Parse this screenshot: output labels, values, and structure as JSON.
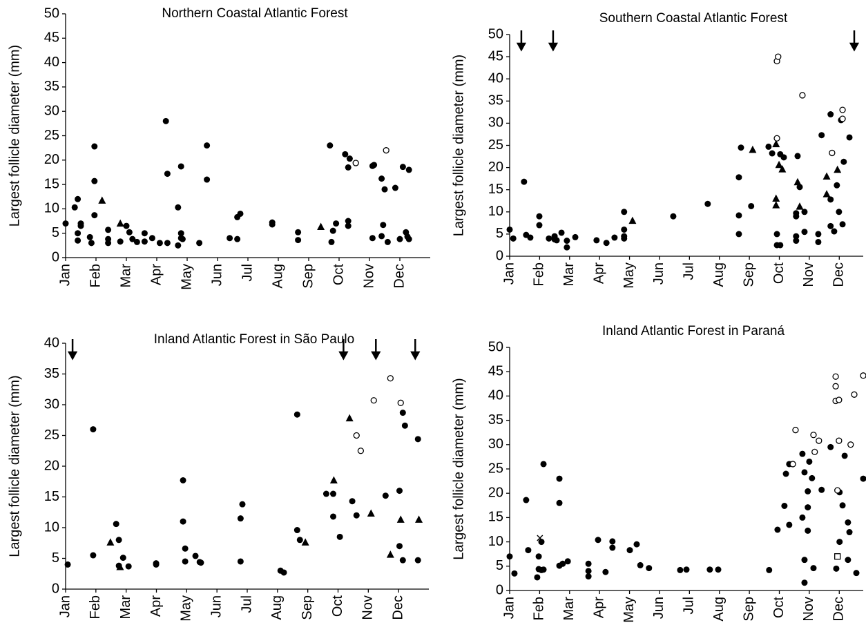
{
  "chart_data": [
    {
      "type": "scatter",
      "title": "Northern Coastal Atlantic Forest",
      "y_label": "Largest follicle diameter (mm)",
      "xlim": [
        0,
        12
      ],
      "ylim": [
        0,
        50
      ],
      "yticks": [
        0,
        5,
        10,
        15,
        20,
        25,
        30,
        35,
        40,
        45,
        50
      ],
      "xticks": [
        {
          "value": 0,
          "label": "Jan"
        },
        {
          "value": 1,
          "label": "Feb"
        },
        {
          "value": 2,
          "label": "Mar"
        },
        {
          "value": 3,
          "label": "Apr"
        },
        {
          "value": 4,
          "label": "May"
        },
        {
          "value": 5,
          "label": "Jun"
        },
        {
          "value": 6,
          "label": "Jul"
        },
        {
          "value": 7,
          "label": "Aug"
        },
        {
          "value": 8,
          "label": "Sep"
        },
        {
          "value": 9,
          "label": "Oct"
        },
        {
          "value": 10,
          "label": "Nov"
        },
        {
          "value": 11,
          "label": "Dec"
        }
      ],
      "arrows": [],
      "series": [
        {
          "marker": "filled-circle",
          "color": "#000000",
          "x": [
            0,
            0.3,
            0.4,
            0.4,
            0.4,
            0.5,
            0.5,
            0.8,
            0.85,
            0.95,
            0.95,
            0.95,
            1.4,
            1.4,
            1.4,
            1.8,
            2.0,
            2.1,
            2.2,
            2.35,
            2.6,
            2.6,
            2.85,
            3.1,
            3.3,
            3.35,
            3.35,
            3.8,
            3.8,
            3.7,
            3.7,
            3.85,
            3.8,
            4.4,
            4.65,
            4.65,
            5.4,
            5.65,
            5.65,
            5.75,
            6.8,
            6.8,
            7.65,
            7.65,
            8.7,
            8.75,
            8.8,
            8.9,
            9.2,
            9.3,
            9.3,
            9.35,
            9.3,
            10.1,
            10.1,
            10.15,
            10.4,
            10.4,
            10.45,
            10.5,
            10.6,
            10.85,
            11.0,
            11.1,
            11.2,
            11.25,
            11.3,
            11.3
          ],
          "values": [
            7,
            10.3,
            12,
            5,
            3.5,
            7,
            6.5,
            4.2,
            3,
            22.8,
            15.7,
            8.7,
            5.7,
            3.8,
            3,
            3.3,
            6.5,
            5.2,
            3.8,
            3.2,
            3.3,
            5,
            4,
            3,
            28,
            17.2,
            3,
            4,
            5,
            10.3,
            2.5,
            3.8,
            18.7,
            3,
            23,
            16,
            4,
            3.8,
            8.3,
            9,
            7.2,
            6.8,
            5.2,
            3.6,
            23,
            3.2,
            5.5,
            7,
            21.2,
            6.5,
            7.5,
            20.3,
            18.5,
            4,
            18.8,
            19,
            16.2,
            4.4,
            6.7,
            14,
            3.2,
            14.3,
            3.8,
            18.6,
            5.2,
            4.3,
            3.8,
            18
          ]
        },
        {
          "marker": "triangle",
          "color": "#000000",
          "x": [
            1.2,
            1.8,
            8.4
          ],
          "values": [
            11.7,
            7,
            6.3
          ]
        },
        {
          "marker": "open-circle",
          "color": "#000000",
          "x": [
            9.55,
            10.55
          ],
          "values": [
            19.4,
            22
          ]
        }
      ]
    },
    {
      "type": "scatter",
      "title": "Southern Coastal Atlantic Forest",
      "y_label": "Largest follicle diameter (mm)",
      "xlim": [
        0,
        11.8
      ],
      "ylim": [
        0,
        50
      ],
      "yticks": [
        0,
        5,
        10,
        15,
        20,
        25,
        30,
        35,
        40,
        45,
        50
      ],
      "xticks": [
        {
          "value": 0,
          "label": "Jan"
        },
        {
          "value": 1,
          "label": "Feb"
        },
        {
          "value": 2,
          "label": "Mar"
        },
        {
          "value": 3,
          "label": "Apr"
        },
        {
          "value": 4,
          "label": "May"
        },
        {
          "value": 5,
          "label": "Jun"
        },
        {
          "value": 6,
          "label": "Jul"
        },
        {
          "value": 7,
          "label": "Aug"
        },
        {
          "value": 8,
          "label": "Sep"
        },
        {
          "value": 9,
          "label": "Oct"
        },
        {
          "value": 10,
          "label": "Nov"
        },
        {
          "value": 11,
          "label": "Dec"
        }
      ],
      "arrows": [
        0.39,
        1.45,
        11.5
      ],
      "series": [
        {
          "marker": "filled-circle",
          "color": "#000000",
          "x": [
            0,
            0.12,
            0.48,
            0.55,
            0.69,
            0.99,
            0.99,
            1.31,
            1.5,
            1.5,
            1.57,
            1.73,
            1.91,
            1.91,
            2.19,
            2.9,
            3.23,
            3.5,
            3.82,
            3.82,
            3.82,
            3.82,
            5.46,
            6.61,
            7.65,
            7.65,
            7.65,
            7.72,
            8.06,
            8.64,
            8.76,
            8.92,
            8.92,
            9.03,
            9.03,
            9.15,
            9.61,
            9.56,
            9.56,
            9.56,
            9.56,
            9.68,
            9.84,
            9.84,
            10.3,
            10.3,
            10.41,
            10.71,
            10.71,
            10.71,
            10.83,
            10.92,
            10.99,
            11.06,
            11.11,
            11.15,
            11.34
          ],
          "values": [
            6,
            4,
            16.8,
            4.8,
            4.2,
            9,
            7,
            4,
            3.8,
            4.5,
            3.6,
            5.3,
            2,
            3.5,
            4.3,
            3.6,
            3,
            4.2,
            10,
            6,
            4.5,
            4,
            9,
            11.8,
            9.2,
            5,
            17.8,
            24.5,
            11.3,
            24.7,
            23.2,
            5,
            2.5,
            2.5,
            23,
            22.3,
            22.6,
            9.7,
            9,
            4.5,
            3.5,
            15.6,
            5.5,
            10,
            3.2,
            5,
            27.3,
            32,
            6.8,
            12.8,
            5.6,
            16,
            10,
            30.7,
            7.2,
            21.3,
            26.8
          ]
        },
        {
          "marker": "triangle",
          "color": "#000000",
          "x": [
            4.1,
            8.11,
            8.89,
            8.89,
            8.89,
            8.99,
            9.1,
            9.61,
            9.68,
            10.58,
            10.58,
            10.94
          ],
          "values": [
            8,
            24,
            25.3,
            13,
            11.5,
            20.6,
            19.6,
            16.7,
            11.2,
            18,
            14,
            19.5
          ]
        },
        {
          "marker": "open-circle",
          "color": "#000000",
          "x": [
            8.92,
            8.92,
            8.96,
            9.77,
            10.76,
            11.11,
            11.11
          ],
          "values": [
            44,
            26.6,
            45,
            36.3,
            23.3,
            33,
            31
          ]
        }
      ]
    },
    {
      "type": "scatter",
      "title": "Inland Atlantic Forest in São Paulo",
      "y_label": "Largest follicle diameter (mm)",
      "xlim": [
        0,
        12
      ],
      "ylim": [
        0,
        40
      ],
      "yticks": [
        0,
        5,
        10,
        15,
        20,
        25,
        30,
        35,
        40
      ],
      "xticks": [
        {
          "value": 0,
          "label": "Jan"
        },
        {
          "value": 1,
          "label": "Feb"
        },
        {
          "value": 2,
          "label": "Mar"
        },
        {
          "value": 3,
          "label": "Apr"
        },
        {
          "value": 4,
          "label": "May"
        },
        {
          "value": 5,
          "label": "Jun"
        },
        {
          "value": 6,
          "label": "Jul"
        },
        {
          "value": 7,
          "label": "Aug"
        },
        {
          "value": 8,
          "label": "Sep"
        },
        {
          "value": 9,
          "label": "Oct"
        },
        {
          "value": 10,
          "label": "Nov"
        },
        {
          "value": 11,
          "label": "Dec"
        }
      ],
      "arrows": [
        0.23,
        9.18,
        10.25,
        11.55
      ],
      "series": [
        {
          "marker": "filled-circle",
          "color": "#000000",
          "x": [
            0.07,
            0.91,
            0.91,
            1.67,
            1.76,
            1.76,
            1.9,
            2.08,
            2.99,
            2.99,
            3.88,
            3.88,
            3.95,
            3.95,
            4.29,
            4.43,
            4.47,
            5.78,
            5.78,
            5.84,
            7.1,
            7.21,
            7.65,
            7.65,
            7.74,
            8.61,
            8.84,
            8.84,
            9.06,
            9.47,
            9.61,
            10.57,
            11.03,
            11.03,
            11.14,
            11.14,
            11.21,
            11.64,
            11.64
          ],
          "values": [
            4,
            26,
            5.5,
            10.6,
            3.8,
            8,
            5.1,
            3.7,
            4.2,
            4,
            17.7,
            11,
            6.6,
            4.5,
            5.4,
            4.4,
            4.3,
            11.5,
            4.5,
            13.8,
            3,
            2.7,
            28.4,
            9.6,
            8,
            15.5,
            15.5,
            11.8,
            8.5,
            14.3,
            12,
            15.2,
            16,
            7,
            28.7,
            4.7,
            26.6,
            24.4,
            4.7
          ]
        },
        {
          "marker": "triangle",
          "color": "#000000",
          "x": [
            1.48,
            1.8,
            7.92,
            8.86,
            9.38,
            10.09,
            10.73,
            11.07,
            11.67
          ],
          "values": [
            7.6,
            3.6,
            7.6,
            17.7,
            27.8,
            12.3,
            5.6,
            11.3,
            11.3
          ]
        },
        {
          "marker": "open-circle",
          "color": "#000000",
          "x": [
            9.61,
            9.75,
            10.18,
            10.73,
            11.07
          ],
          "values": [
            25,
            22.5,
            30.7,
            34.3,
            30.3
          ]
        }
      ]
    },
    {
      "type": "scatter",
      "title": "Inland Atlantic Forest in Paraná",
      "y_label": "Largest follicle diameter (mm)",
      "xlim": [
        0,
        11.8
      ],
      "ylim": [
        0,
        50
      ],
      "yticks": [
        0,
        5,
        10,
        15,
        20,
        25,
        30,
        35,
        40,
        45,
        50
      ],
      "xticks": [
        {
          "value": 0,
          "label": "Jan"
        },
        {
          "value": 1,
          "label": "Feb"
        },
        {
          "value": 2,
          "label": "Mar"
        },
        {
          "value": 3,
          "label": "Apr"
        },
        {
          "value": 4,
          "label": "May"
        },
        {
          "value": 5,
          "label": "Jun"
        },
        {
          "value": 6,
          "label": "Jul"
        },
        {
          "value": 7,
          "label": "Aug"
        },
        {
          "value": 8,
          "label": "Sep"
        },
        {
          "value": 9,
          "label": "Oct"
        },
        {
          "value": 10,
          "label": "Nov"
        },
        {
          "value": 11,
          "label": "Dec"
        }
      ],
      "arrows": [],
      "series": [
        {
          "marker": "filled-circle",
          "color": "#000000",
          "x": [
            0,
            0.16,
            0.55,
            0.62,
            0.92,
            0.97,
            0.97,
            1.06,
            1.06,
            1.13,
            1.13,
            1.66,
            1.66,
            1.66,
            1.77,
            1.94,
            2.63,
            2.63,
            2.63,
            2.95,
            3.2,
            3.43,
            3.43,
            4.01,
            4.24,
            4.36,
            4.65,
            5.69,
            5.9,
            6.68,
            6.96,
            8.66,
            8.94,
            9.17,
            9.22,
            9.33,
            9.33,
            9.77,
            9.77,
            9.84,
            9.84,
            9.84,
            9.95,
            9.95,
            9.95,
            10,
            10.09,
            10.14,
            10.41,
            10.71,
            10.9,
            11.01,
            11.01,
            11.11,
            11.18,
            11.29,
            11.29,
            11.34,
            11.57,
            11.8
          ],
          "values": [
            7,
            3.5,
            18.6,
            8.3,
            2.7,
            7,
            4.4,
            10,
            4.2,
            26,
            4.3,
            23,
            18,
            5.1,
            5.5,
            6,
            5.5,
            4,
            2.9,
            10.4,
            3.8,
            10.1,
            8.8,
            8.3,
            9.5,
            5.2,
            4.6,
            4.2,
            4.3,
            4.3,
            4.3,
            4.2,
            12.5,
            17.4,
            24,
            26,
            13.5,
            28.1,
            15,
            6.3,
            24.3,
            1.6,
            20.4,
            17.1,
            12.3,
            26.5,
            23.1,
            4.6,
            20.7,
            29.5,
            4.5,
            20.2,
            10,
            17.5,
            27.7,
            14,
            6.3,
            12,
            3.6,
            23
          ]
        },
        {
          "marker": "open-circle",
          "color": "#000000",
          "x": [
            9.45,
            9.54,
            10.14,
            10.18,
            10.32,
            10.88,
            10.88,
            10.88,
            10.99,
            10.99,
            10.94,
            11.38,
            11.5,
            11.8
          ],
          "values": [
            26,
            33,
            32,
            28.5,
            30.8,
            39,
            42,
            44,
            39.2,
            30.8,
            20.6,
            30,
            40.3,
            44.2
          ]
        },
        {
          "marker": "cross",
          "color": "#000000",
          "x": [
            1.01
          ],
          "values": [
            10.8
          ]
        },
        {
          "marker": "open-square",
          "color": "#000000",
          "x": [
            10.94
          ],
          "values": [
            7
          ]
        }
      ]
    }
  ]
}
